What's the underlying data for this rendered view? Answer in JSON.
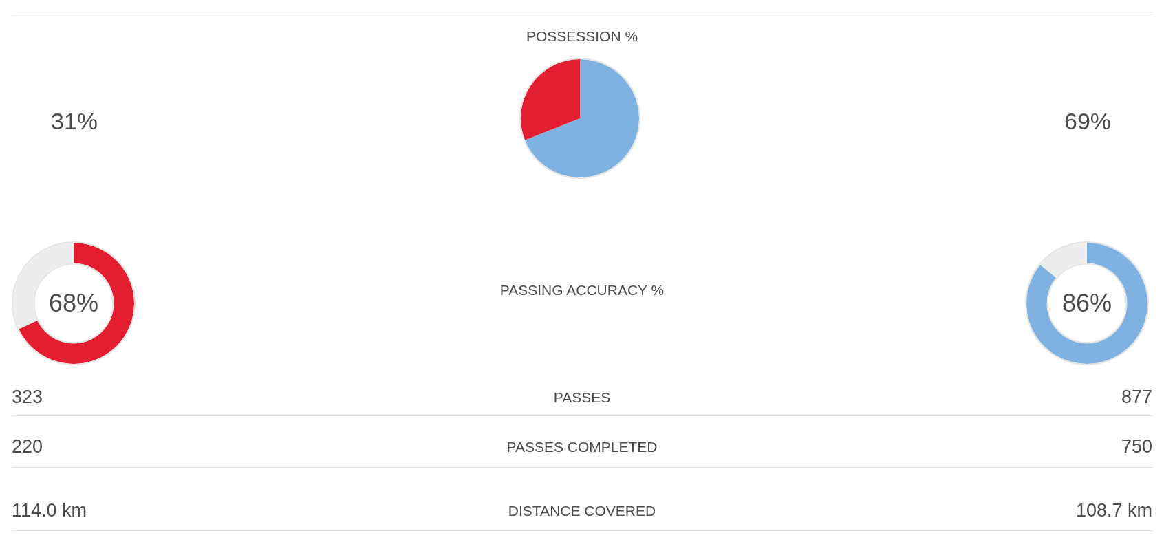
{
  "chart_data": [
    {
      "type": "pie",
      "title": "POSSESSION %",
      "categories": [
        null,
        null
      ],
      "values": [
        69,
        31
      ],
      "colors": [
        "#7fb2e0",
        "#e31e30"
      ],
      "annotations": [
        "31%",
        "69%"
      ]
    },
    {
      "type": "donut",
      "categories": [
        null,
        null
      ],
      "values": [
        68,
        32
      ],
      "colors": [
        "#e31e30",
        "#ededed"
      ],
      "value_labels": [
        "68%",
        null
      ]
    },
    {
      "type": "donut",
      "categories": [
        null,
        null
      ],
      "values": [
        86,
        14
      ],
      "colors": [
        "#7fb2e0",
        "#ededed"
      ],
      "value_labels": [
        "86%",
        null
      ]
    },
    {
      "type": "other",
      "title": "PASSING ACCURACY %",
      "annotations": [
        "323",
        "PASSES",
        "877",
        "220",
        "PASSES COMPLETED",
        "750",
        "114.0 km",
        "DISTANCE COVERED",
        "108.7 km"
      ]
    }
  ]
}
